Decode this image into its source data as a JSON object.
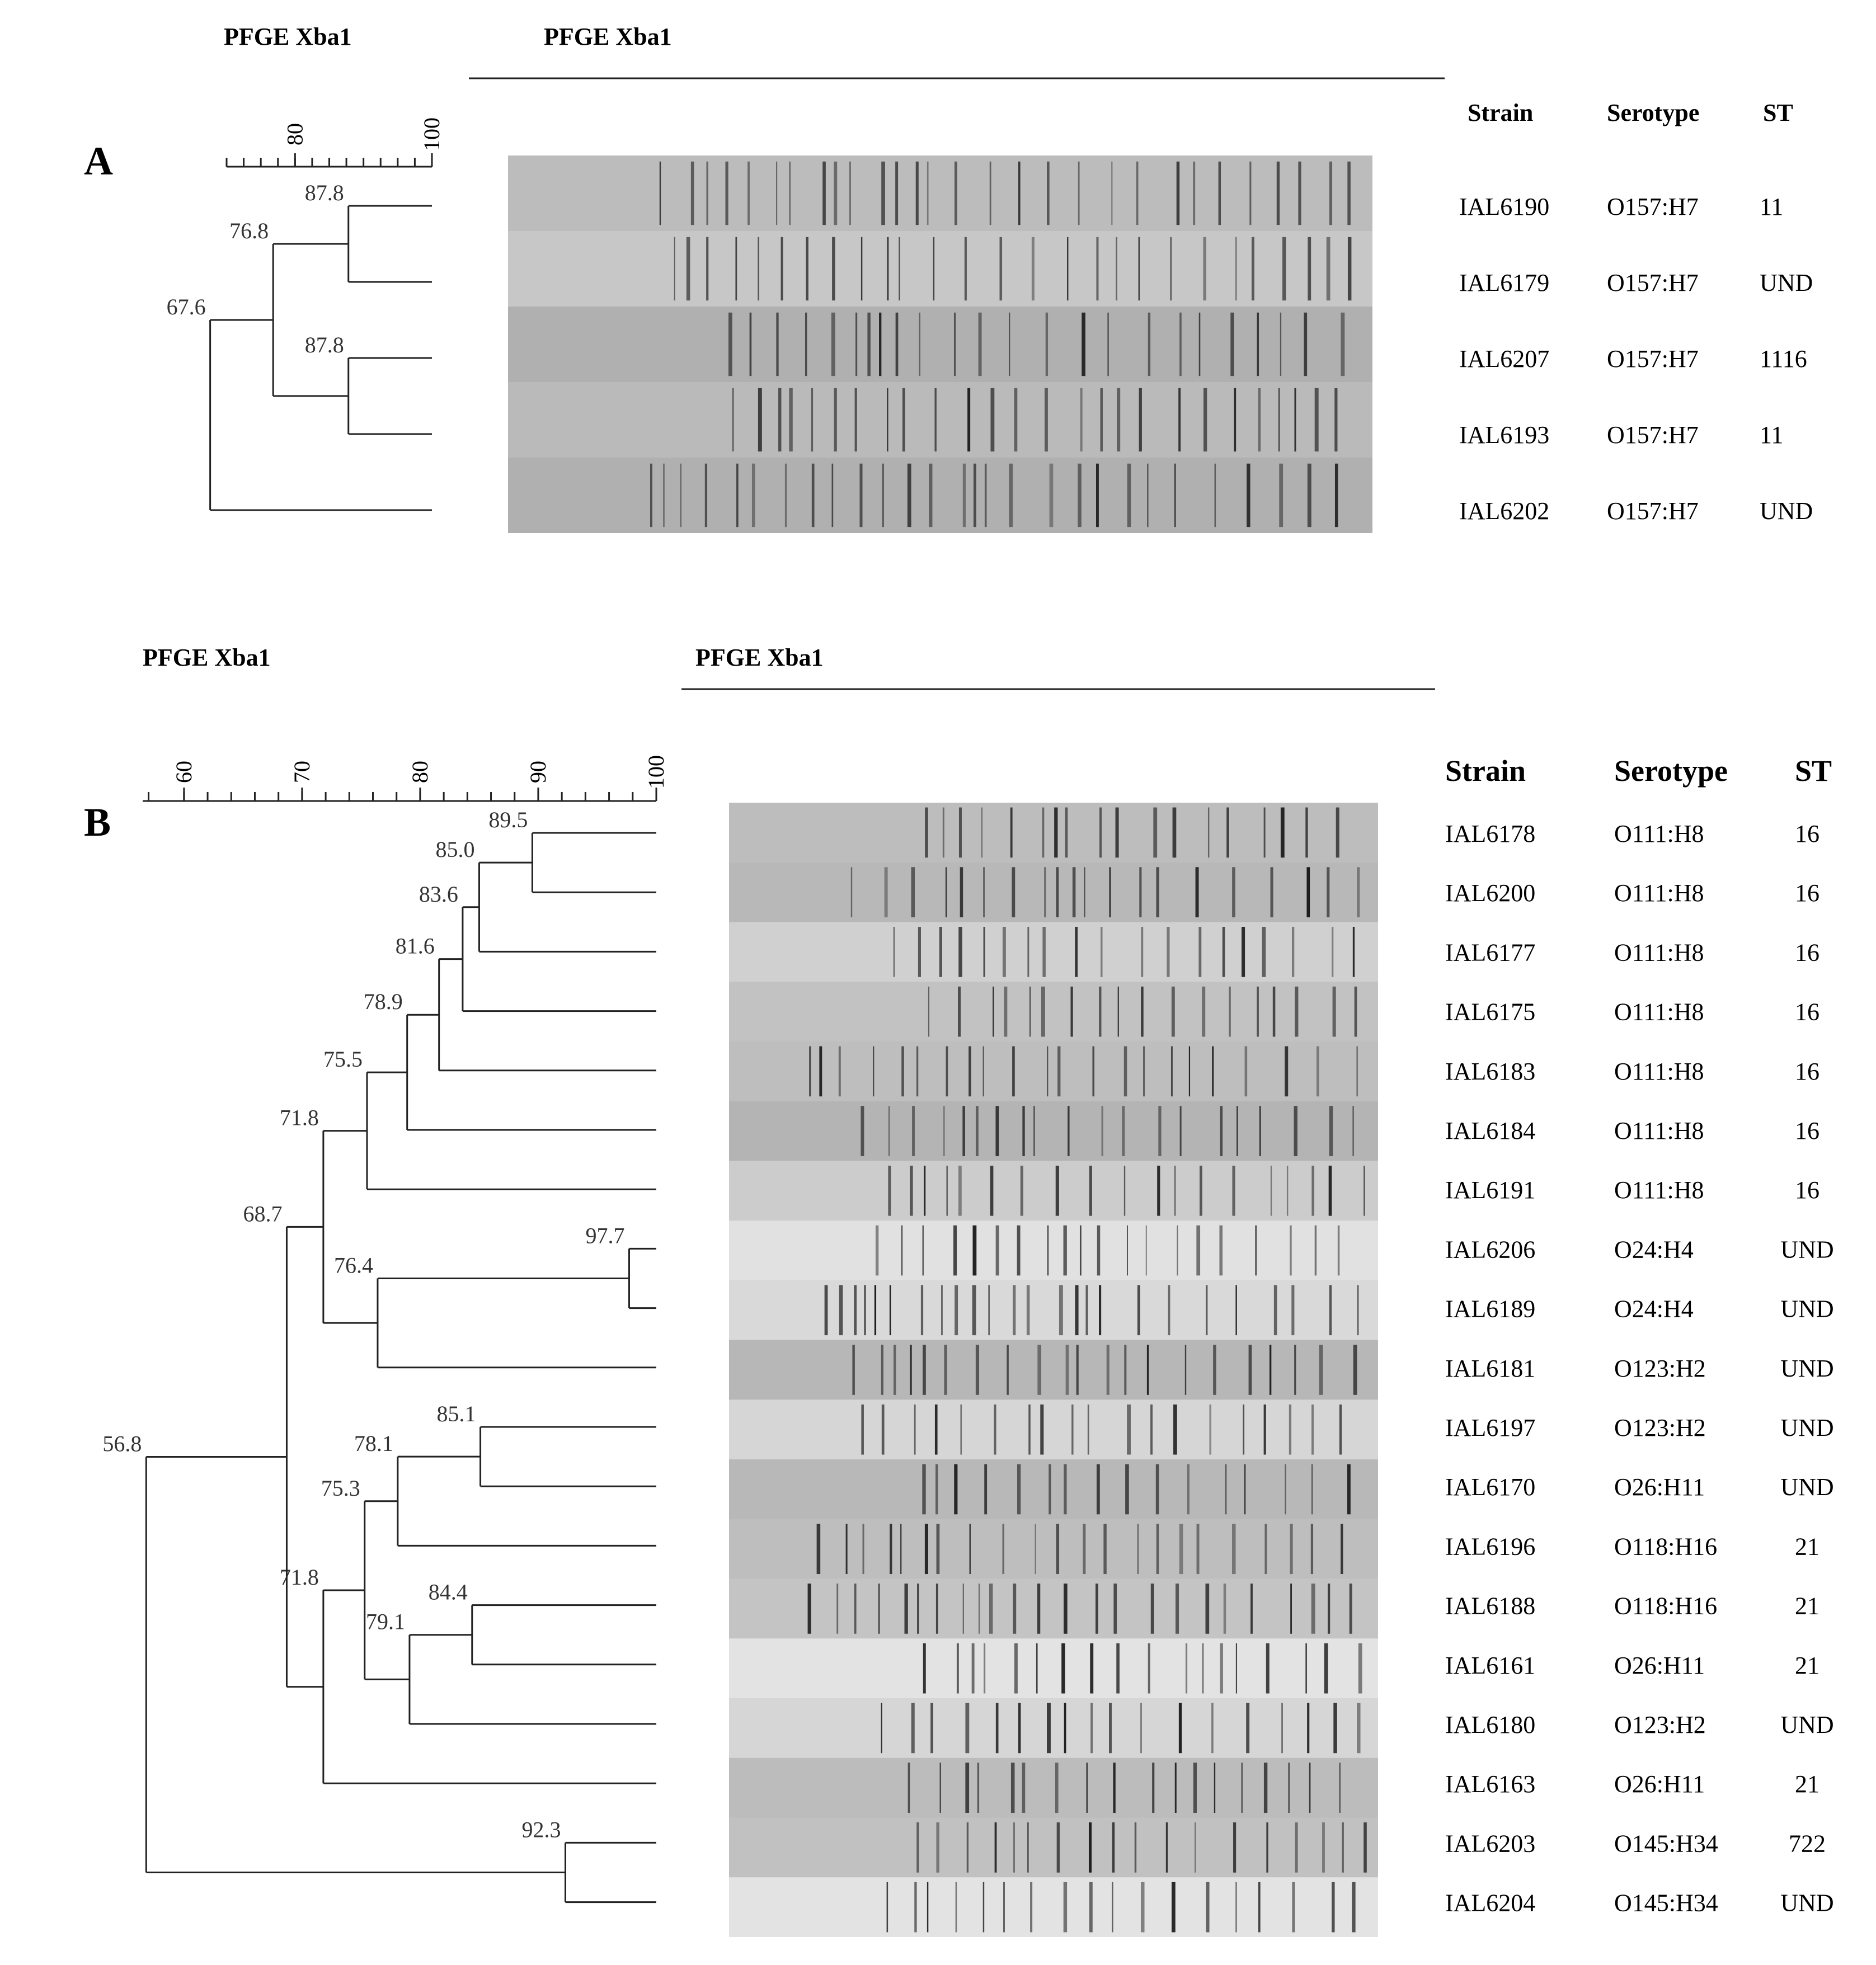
{
  "panelA": {
    "letter": "A",
    "dendro_title": "PFGE Xba1",
    "gel_title": "PFGE Xba1",
    "scale": {
      "min": 70,
      "max": 100,
      "ticks": [
        70,
        72.5,
        75,
        77.5,
        80,
        82.5,
        85,
        87.5,
        90,
        92.5,
        95,
        97.5,
        100
      ],
      "labels": [
        "80",
        "100"
      ]
    },
    "headers": {
      "strain": "Strain",
      "serotype": "Serotype",
      "st": "ST"
    },
    "rows": [
      {
        "strain": "IAL6190",
        "serotype": "O157:H7",
        "st": "11"
      },
      {
        "strain": "IAL6179",
        "serotype": "O157:H7",
        "st": "UND"
      },
      {
        "strain": "IAL6207",
        "serotype": "O157:H7",
        "st": "1116"
      },
      {
        "strain": "IAL6193",
        "serotype": "O157:H7",
        "st": "11"
      },
      {
        "strain": "IAL6202",
        "serotype": "O157:H7",
        "st": "UND"
      }
    ],
    "nodes": [
      {
        "id": "n1",
        "sim": 87.8,
        "label": "87.8",
        "children": [
          0,
          1
        ]
      },
      {
        "id": "n2",
        "sim": 87.8,
        "label": "87.8",
        "children": [
          2,
          3
        ]
      },
      {
        "id": "n3",
        "sim": 76.8,
        "label": "76.8",
        "children": [
          "n1",
          "n2"
        ]
      },
      {
        "id": "n4",
        "sim": 67.6,
        "label": "67.6",
        "children": [
          "n3",
          4
        ]
      }
    ]
  },
  "panelB": {
    "letter": "B",
    "dendro_title": "PFGE Xba1",
    "gel_title": "PFGE Xba1",
    "scale": {
      "min": 56.5,
      "max": 100,
      "ticks": [
        57,
        60,
        62,
        64,
        66,
        68,
        70,
        72,
        74,
        76,
        78,
        80,
        82,
        84,
        86,
        88,
        90,
        92,
        94,
        96,
        98,
        100
      ],
      "labels": [
        "60",
        "70",
        "80",
        "90",
        "100"
      ]
    },
    "headers": {
      "strain": "Strain",
      "serotype": "Serotype",
      "st": "ST"
    },
    "rows": [
      {
        "strain": "IAL6178",
        "serotype": "O111:H8",
        "st": "16"
      },
      {
        "strain": "IAL6200",
        "serotype": "O111:H8",
        "st": "16"
      },
      {
        "strain": "IAL6177",
        "serotype": "O111:H8",
        "st": "16"
      },
      {
        "strain": "IAL6175",
        "serotype": "O111:H8",
        "st": "16"
      },
      {
        "strain": "IAL6183",
        "serotype": "O111:H8",
        "st": "16"
      },
      {
        "strain": "IAL6184",
        "serotype": "O111:H8",
        "st": "16"
      },
      {
        "strain": "IAL6191",
        "serotype": "O111:H8",
        "st": "16"
      },
      {
        "strain": "IAL6206",
        "serotype": "O24:H4",
        "st": "UND"
      },
      {
        "strain": "IAL6189",
        "serotype": "O24:H4",
        "st": "UND"
      },
      {
        "strain": "IAL6181",
        "serotype": "O123:H2",
        "st": "UND"
      },
      {
        "strain": "IAL6197",
        "serotype": "O123:H2",
        "st": "UND"
      },
      {
        "strain": "IAL6170",
        "serotype": "O26:H11",
        "st": "UND"
      },
      {
        "strain": "IAL6196",
        "serotype": "O118:H16",
        "st": "21"
      },
      {
        "strain": "IAL6188",
        "serotype": "O118:H16",
        "st": "21"
      },
      {
        "strain": "IAL6161",
        "serotype": "O26:H11",
        "st": "21"
      },
      {
        "strain": "IAL6180",
        "serotype": "O123:H2",
        "st": "UND"
      },
      {
        "strain": "IAL6163",
        "serotype": "O26:H11",
        "st": "21"
      },
      {
        "strain": "IAL6203",
        "serotype": "O145:H34",
        "st": "722"
      },
      {
        "strain": "IAL6204",
        "serotype": "O145:H34",
        "st": "UND"
      }
    ],
    "nodes": [
      {
        "id": "b1",
        "sim": 89.5,
        "label": "89.5",
        "children": [
          0,
          1
        ]
      },
      {
        "id": "b2",
        "sim": 85.0,
        "label": "85.0",
        "children": [
          "b1",
          2
        ]
      },
      {
        "id": "b3",
        "sim": 83.6,
        "label": "83.6",
        "children": [
          "b2",
          3
        ]
      },
      {
        "id": "b4",
        "sim": 81.6,
        "label": "81.6",
        "children": [
          "b3",
          4
        ]
      },
      {
        "id": "b5",
        "sim": 78.9,
        "label": "78.9",
        "children": [
          "b4",
          5
        ]
      },
      {
        "id": "b6",
        "sim": 75.5,
        "label": "75.5",
        "children": [
          "b5",
          6
        ]
      },
      {
        "id": "b7",
        "sim": 97.7,
        "label": "97.7",
        "children": [
          7,
          8
        ]
      },
      {
        "id": "b8",
        "sim": 76.4,
        "label": "76.4",
        "children": [
          "b7",
          9
        ]
      },
      {
        "id": "b9",
        "sim": 71.8,
        "label": "71.8",
        "children": [
          "b6",
          "b8"
        ]
      },
      {
        "id": "b10",
        "sim": 85.1,
        "label": "85.1",
        "children": [
          10,
          11
        ]
      },
      {
        "id": "b11",
        "sim": 78.1,
        "label": "78.1",
        "children": [
          "b10",
          12
        ]
      },
      {
        "id": "b12",
        "sim": 84.4,
        "label": "84.4",
        "children": [
          13,
          14
        ]
      },
      {
        "id": "b13",
        "sim": 79.1,
        "label": "79.1",
        "children": [
          "b12",
          15
        ]
      },
      {
        "id": "b14",
        "sim": 75.3,
        "label": "75.3",
        "children": [
          "b11",
          "b13"
        ]
      },
      {
        "id": "b15",
        "sim": 71.8,
        "label": "71.8",
        "children": [
          "b14",
          16
        ]
      },
      {
        "id": "b16",
        "sim": 68.7,
        "label": "68.7",
        "children": [
          "b9",
          "b15"
        ]
      },
      {
        "id": "b17",
        "sim": 92.3,
        "label": "92.3",
        "children": [
          17,
          18
        ]
      },
      {
        "id": "b18",
        "sim": 56.8,
        "label": "56.8",
        "children": [
          "b16",
          "b17"
        ]
      }
    ]
  }
}
